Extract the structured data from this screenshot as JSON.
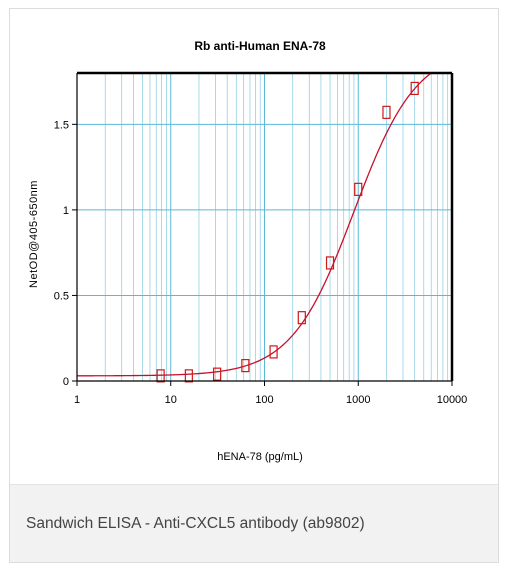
{
  "caption": "Sandwich ELISA - Anti-CXCL5 antibody (ab9802)",
  "colors": {
    "grid": "#5bb8d6",
    "curve": "#c8102e",
    "marker": "#d01818",
    "frame": "#000000"
  },
  "chart_data": {
    "type": "scatter",
    "title": "Rb anti-Human ENA-78",
    "xlabel": "hENA-78 (pg/mL)",
    "ylabel": "NetOD@405-650nm",
    "xscale": "log",
    "xlim": [
      1,
      10000
    ],
    "ylim": [
      0,
      1.8
    ],
    "x_ticks": [
      {
        "value": 1,
        "label": "1"
      },
      {
        "value": 10,
        "label": "10"
      },
      {
        "value": 100,
        "label": "100"
      },
      {
        "value": 1000,
        "label": "1000"
      },
      {
        "value": 10000,
        "label": "10000"
      }
    ],
    "y_ticks": [
      {
        "value": 0,
        "label": "0"
      },
      {
        "value": 0.5,
        "label": "0.5"
      },
      {
        "value": 1,
        "label": "1"
      },
      {
        "value": 1.5,
        "label": "1.5"
      }
    ],
    "grid": true,
    "series": [
      {
        "kind": "points",
        "x": [
          7.8,
          15.6,
          31.25,
          62.5,
          125,
          250,
          500,
          1000,
          2000,
          4000
        ],
        "y": [
          0.03,
          0.03,
          0.04,
          0.09,
          0.17,
          0.37,
          0.69,
          1.12,
          1.57,
          1.71
        ]
      },
      {
        "kind": "fit",
        "model": "4PL",
        "bottom": 0.03,
        "top": 1.95,
        "ec50": 900,
        "hill": 1.3
      }
    ]
  }
}
